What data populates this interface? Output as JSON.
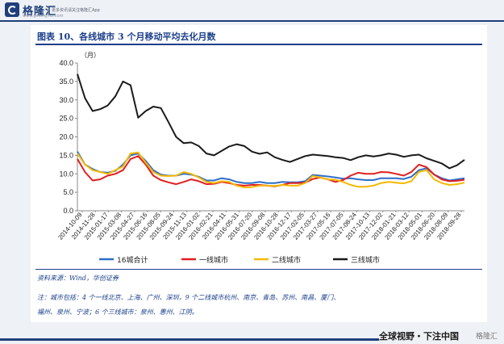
{
  "header": {
    "logo_text": "格隆汇",
    "logo_sub": "www.gelonghui.com",
    "slogan": "更多资讯请关注格隆汇App"
  },
  "title": "图表 10、各线城市 3 个月移动平均去化月数",
  "source": "资料来源：Wind，华创证券",
  "note_line1": "注：城市包括：4 个一线北京、上海、广州、深圳，9 个二线城市杭州、南京、青岛、苏州、南昌、厦门、",
  "note_line2": "福州、泉州、宁波；6 个三线城市：泉州、惠州、江阴。",
  "bottom_slogan": "全球视野・下注中国",
  "watermark_text": "格隆汇",
  "chart_data": {
    "type": "line",
    "ylabel": "（月）",
    "ylim": [
      0,
      40
    ],
    "yticks": [
      "0.0",
      "5.0",
      "10.0",
      "15.0",
      "20.0",
      "25.0",
      "30.0",
      "35.0",
      "40.0"
    ],
    "x_ticks": [
      "2014-10-09",
      "2014-11-28",
      "2015-01-17",
      "2015-03-08",
      "2015-04-27",
      "2015-06-16",
      "2015-08-05",
      "2015-09-24",
      "2015-11-13",
      "2016-01-02",
      "2016-02-21",
      "2016-04-11",
      "2016-05-31",
      "2016-07-20",
      "2016-09-08",
      "2016-10-28",
      "2016-12-17",
      "2017-02-05",
      "2017-03-27",
      "2017-05-16",
      "2017-07-05",
      "2017-08-24",
      "2017-10-13",
      "2017-12-02",
      "2018-01-21",
      "2018-03-12",
      "2018-05-01",
      "2018-06-20",
      "2018-08-09",
      "2018-09-28"
    ],
    "legend_position": "bottom",
    "series": [
      {
        "name": "16城合计",
        "color": "#2e6fc7",
        "values": [
          16,
          12.5,
          11.3,
          10.5,
          10.3,
          10.8,
          12.5,
          15,
          15.5,
          13.5,
          11,
          9.8,
          9.5,
          9.5,
          10,
          9.8,
          9.2,
          8.2,
          8.2,
          8.8,
          8.5,
          7.8,
          7.5,
          7.5,
          7.8,
          7.5,
          7.5,
          7.8,
          7.7,
          7.7,
          8,
          9.7,
          9.5,
          9.3,
          9,
          8.7,
          8.8,
          8.5,
          8.3,
          8.3,
          8.8,
          8.8,
          8.8,
          8.6,
          9.2,
          11,
          11.5,
          9.8,
          8.8,
          8.2,
          8.5,
          8.8
        ]
      },
      {
        "name": "一线城市",
        "color": "#e02020",
        "values": [
          14,
          10.5,
          8.2,
          8.5,
          9.5,
          10,
          11,
          14,
          14.8,
          12.5,
          9.5,
          8.3,
          7.7,
          7.2,
          7.8,
          8.5,
          8,
          7.2,
          7.3,
          7.8,
          7.5,
          7,
          6.8,
          7,
          7,
          6.8,
          6.6,
          7,
          7.5,
          7.5,
          7.6,
          8.6,
          9,
          8.5,
          7.8,
          8.3,
          9.5,
          10.3,
          10,
          10,
          10.5,
          10.4,
          10,
          9.5,
          10.5,
          12.5,
          11.8,
          9.8,
          8.5,
          8,
          8.1,
          8.4
        ]
      },
      {
        "name": "二线城市",
        "color": "#f5b800",
        "values": [
          15.5,
          12.5,
          11,
          10.5,
          10,
          11,
          12,
          15.5,
          15.8,
          13,
          10.5,
          9.5,
          9.4,
          9.5,
          10.5,
          10,
          9,
          7.8,
          7.5,
          8,
          7.8,
          6.8,
          6.3,
          6.4,
          6.8,
          6.8,
          6.7,
          7,
          6.8,
          6.8,
          7.5,
          9.4,
          9,
          8.5,
          8.4,
          7.8,
          7,
          6.5,
          6.5,
          6.8,
          7.5,
          7.8,
          7.6,
          7.4,
          8,
          10.5,
          11,
          8.5,
          7.5,
          7,
          7.2,
          7.6
        ]
      },
      {
        "name": "三线城市",
        "color": "#1a1a1a",
        "values": [
          37,
          30.5,
          27,
          27.5,
          28.5,
          31,
          35,
          34,
          25.2,
          27,
          28.2,
          27.8,
          24,
          20,
          18.3,
          18.5,
          17.5,
          15.5,
          15,
          16.2,
          17.4,
          18,
          17.5,
          16,
          15.4,
          15.8,
          14.5,
          13.8,
          13.2,
          14,
          14.8,
          15.2,
          15,
          14.8,
          14.5,
          14.3,
          13.7,
          14.5,
          15,
          14.7,
          15,
          15.5,
          15.2,
          14.6,
          15,
          15.2,
          14.2,
          13.5,
          12.8,
          11.5,
          12.3,
          13.8
        ]
      }
    ]
  }
}
